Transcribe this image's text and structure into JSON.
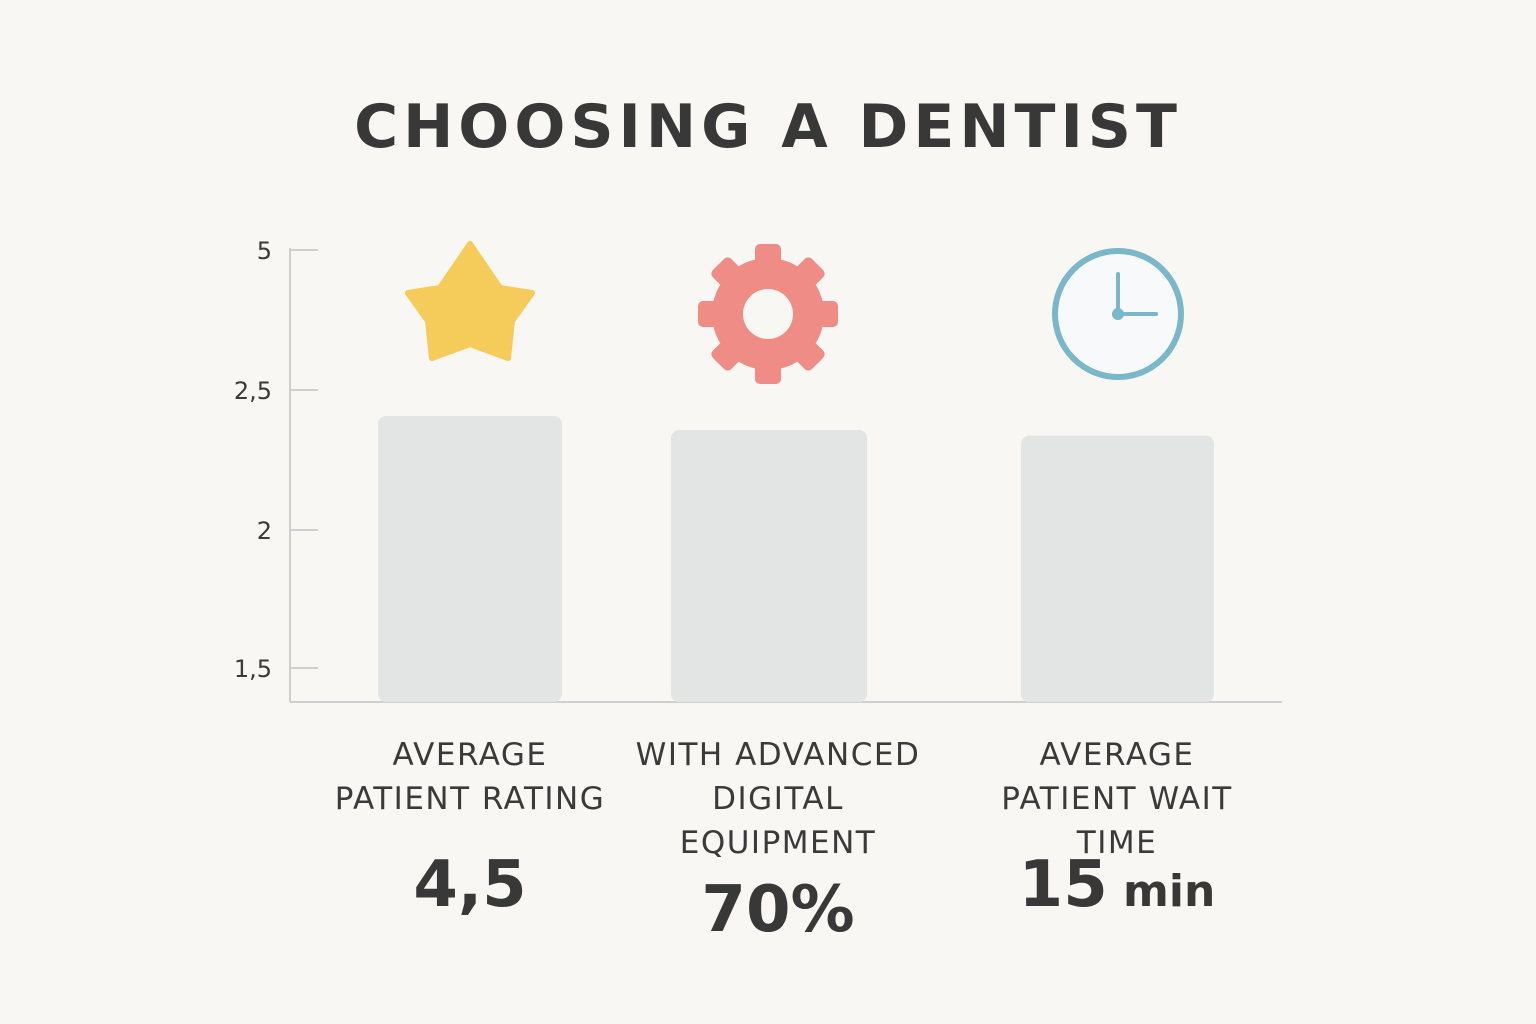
{
  "title": "CHOOSING A DENTIST",
  "colors": {
    "background": "#f8f7f3",
    "bar": "#e3e5e5",
    "axis": "#cfcfcf",
    "star": "#f5cc5a",
    "gear": "#f08c86",
    "clock": "#79b7c9"
  },
  "icons": [
    "star-icon",
    "gear-icon",
    "clock-icon"
  ],
  "chart_data": {
    "type": "bar",
    "title": "CHOOSING A DENTIST",
    "y_ticks": [
      "5",
      "2,5",
      "2",
      "1,5"
    ],
    "categories": [
      [
        "AVERAGE",
        "PATIENT RATING"
      ],
      [
        "WITH ADVANCED",
        "DIGITAL",
        "EQUIPMENT"
      ],
      [
        "AVERAGE",
        "PATIENT WAIT TIME"
      ]
    ],
    "bar_heights_relative": [
      2.45,
      2.4,
      2.38
    ],
    "value_labels": [
      {
        "value": "4,5",
        "unit": ""
      },
      {
        "value": "70%",
        "unit": ""
      },
      {
        "value": "15",
        "unit": "min"
      }
    ],
    "xlabel": "",
    "ylabel": "",
    "grid": false
  }
}
